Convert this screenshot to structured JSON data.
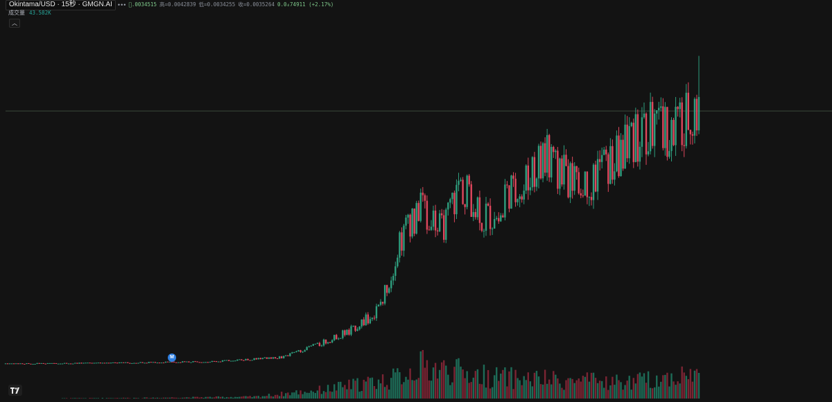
{
  "header": {
    "symbol": "Okintama/USD · 15秒 · GMGN.AI",
    "open_text": "\u0000.0034515",
    "high_text": "高=0.0042839",
    "low_text": "低=0.0034255",
    "close_text": "收=0.0035264",
    "change_text": "0.0₄74911 (+2.17%)"
  },
  "volume_legend": {
    "label": "成交量",
    "value": "43.582K"
  },
  "marker_label": "M",
  "colors": {
    "background": "#131313",
    "up": "#2e9e7e",
    "down": "#e0475d",
    "volume_up": "#1d6b57",
    "volume_down": "#7b2433",
    "crosshair": "#3b4a3b",
    "marker": "#2f7fe0"
  },
  "icons": {
    "collapse": "chevron-up-icon",
    "logo": "tradingview-logo-icon",
    "menu": "more-dots-icon"
  },
  "chart_data": {
    "type": "candlestick",
    "symbol": "Okintama/USD",
    "interval": "15秒",
    "source": "GMGN.AI",
    "last": {
      "open": 0.0034515,
      "high": 0.0042839,
      "low": 0.0034255,
      "close": 0.0035264,
      "change_pct": 2.17
    },
    "series_path": [
      [
        0,
        5e-05
      ],
      [
        15,
        6e-05
      ],
      [
        30,
        8e-05
      ],
      [
        40,
        0.00014
      ],
      [
        46,
        0.00035
      ],
      [
        50,
        0.00052
      ],
      [
        54,
        0.0008
      ],
      [
        57,
        0.00175
      ],
      [
        60,
        0.0022
      ],
      [
        63,
        0.0019
      ],
      [
        66,
        0.0025
      ],
      [
        69,
        0.002
      ],
      [
        72,
        0.0023
      ],
      [
        75,
        0.0026
      ],
      [
        78,
        0.0029
      ],
      [
        81,
        0.0026
      ],
      [
        84,
        0.0025
      ],
      [
        87,
        0.0028
      ],
      [
        90,
        0.0031
      ],
      [
        93,
        0.0033
      ],
      [
        96,
        0.0032
      ],
      [
        99,
        0.0035
      ],
      [
        100,
        0.0035264
      ]
    ],
    "volume_pattern": [
      [
        0,
        0.0
      ],
      [
        20,
        0.02
      ],
      [
        36,
        0.05
      ],
      [
        46,
        0.25
      ],
      [
        56,
        0.55
      ],
      [
        60,
        0.9
      ],
      [
        70,
        0.6
      ],
      [
        80,
        0.5
      ],
      [
        90,
        0.45
      ],
      [
        100,
        0.7
      ]
    ],
    "volume_last": "43.582K",
    "crosshair_price": 0.0035264
  }
}
